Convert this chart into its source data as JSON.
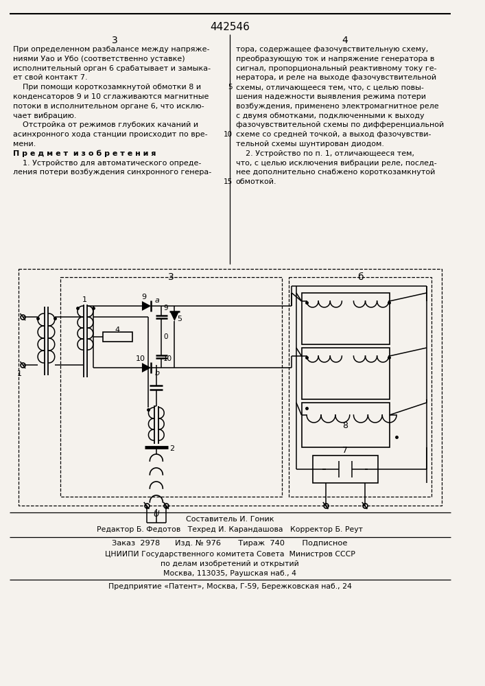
{
  "patent_number": "442546",
  "bg_color": "#f5f2ed",
  "text_col1": [
    [
      "При определенном разбалансе между напряже-",
      false
    ],
    [
      "ниями Уао и Убо (соответственно уставке)",
      false
    ],
    [
      "исполнительный орган 6 срабатывает и замыка-",
      false
    ],
    [
      "ет свой контакт 7.",
      false
    ],
    [
      "    При помощи короткозамкнутой обмотки 8 и",
      false
    ],
    [
      "конденсаторов 9 и 10 сглаживаются магнитные",
      false
    ],
    [
      "потоки в исполнительном органе 6, что исклю-",
      false
    ],
    [
      "чает вибрацию.",
      false
    ],
    [
      "    Отстройка от режимов глубоких качаний и",
      false
    ],
    [
      "асинхронного хода станции происходит по вре-",
      false
    ],
    [
      "мени.",
      false
    ],
    [
      "П р е д м е т  и з о б р е т е н и я",
      true
    ],
    [
      "    1. Устройство для автоматического опреде-",
      false
    ],
    [
      "ления потери возбуждения синхронного генера-",
      false
    ]
  ],
  "text_col2": [
    [
      "тора, содержащее фазочувствительную схему,",
      false
    ],
    [
      "преобразующую ток и напряжение генератора в",
      false
    ],
    [
      "сигнал, пропорциональный реактивному току ге-",
      false
    ],
    [
      "нератора, и реле на выходе фазочувствительной",
      false
    ],
    [
      "схемы, отличающееся тем, что, с целью повы-",
      false
    ],
    [
      "шения надежности выявления режима потери",
      false
    ],
    [
      "возбуждения, применено электромагнитное реле",
      false
    ],
    [
      "с двумя обмотками, подключенными к выходу",
      false
    ],
    [
      "фазочувствительной схемы по дифференциальной",
      false
    ],
    [
      "схеме со средней точкой, а выход фазочувстви-",
      false
    ],
    [
      "тельной схемы шунтирован диодом.",
      false
    ],
    [
      "    2. Устройство по п. 1, отличающееся тем,",
      false
    ],
    [
      "что, с целью исключения вибрации реле, послед-",
      false
    ],
    [
      "нее дополнительно снабжено короткозамкнутой",
      false
    ],
    [
      "обмоткой.",
      false
    ]
  ],
  "line_nums": {
    "4": "5",
    "9": "10",
    "14": "15"
  },
  "footer_line1": "Составитель И. Гоник",
  "footer_line2": "Редактор Б. Федотов   Техред И. Карандашова   Корректор Б. Реут",
  "footer_line3": "Заказ  2978      Изд. № 976       Тираж  740       Подписное",
  "footer_line4": "ЦНИИПИ Государственного комитета Совета  Министров СССР",
  "footer_line5": "по делам изобретений и открытий",
  "footer_line6": "Москва, 113035, Раушская наб., 4",
  "footer_line7": "Предприятие «Патент», Москва, Г-59, Бережковская наб., 24"
}
